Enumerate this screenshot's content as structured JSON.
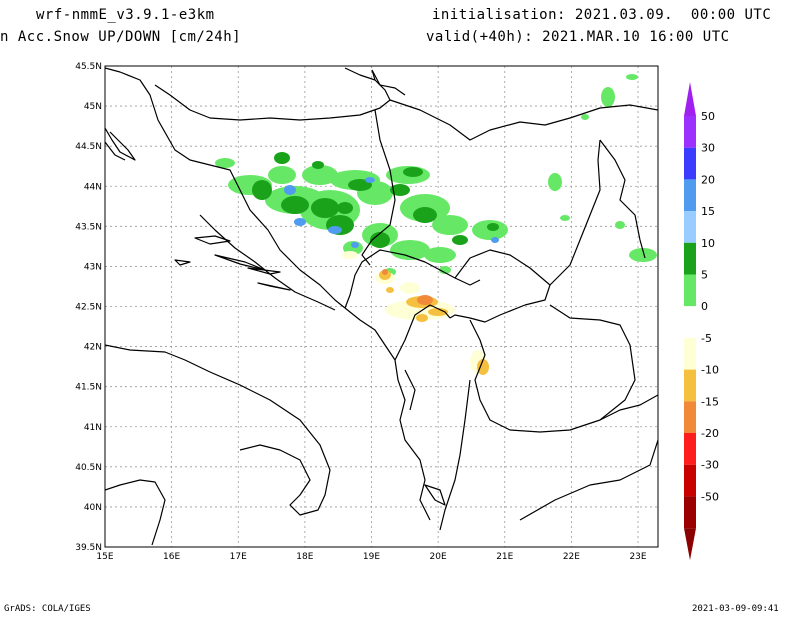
{
  "header": {
    "model": "wrf-nmmE_v3.9.1-e3km",
    "field": "n Acc.Snow UP/DOWN [cm/24h]",
    "init": "initialisation: 2021.03.09.  00:00 UTC",
    "valid": "valid(+40h): 2021.MAR.10 16:00 UTC"
  },
  "footer": {
    "left": "GrADS: COLA/IGES",
    "right": "2021-03-09-09:41"
  },
  "chart_data": {
    "type": "heatmap",
    "xlabels": [
      "15E",
      "16E",
      "17E",
      "18E",
      "19E",
      "20E",
      "21E",
      "22E",
      "23E"
    ],
    "ylabels": [
      "45.5N",
      "45N",
      "44.5N",
      "44N",
      "43.5N",
      "43N",
      "42.5N",
      "42N",
      "41.5N",
      "41N",
      "40.5N",
      "40N",
      "39.5N"
    ],
    "xlim": [
      15,
      23.3
    ],
    "ylim": [
      39.5,
      45.5
    ],
    "grid": true,
    "colorbar": {
      "labels": [
        "50",
        "30",
        "20",
        "15",
        "10",
        "5",
        "0",
        "-5",
        "-10",
        "-15",
        "-20",
        "-30",
        "-50"
      ],
      "colors": [
        "#9b30ff",
        "#3c3cff",
        "#4f9bf0",
        "#99ccff",
        "#1aa31a",
        "#66e866",
        "#ffffff",
        "#ffffd6",
        "#f5c040",
        "#f08a38",
        "#ff1e1e",
        "#c80000",
        "#9b0000"
      ],
      "top_color": "#a020f0",
      "bottom_color": "#8b0000"
    }
  }
}
